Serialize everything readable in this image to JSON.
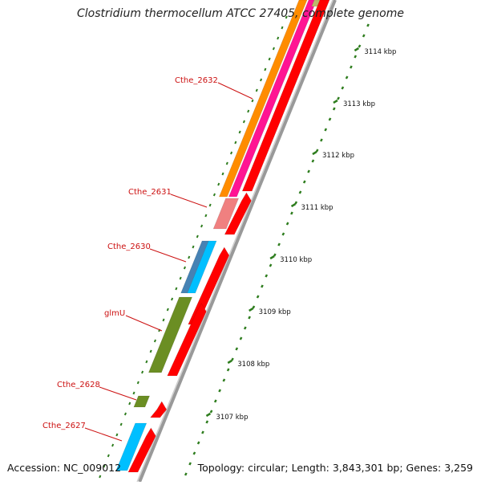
{
  "title": "Clostridium thermocellum ATCC 27405, complete genome",
  "accession": "Accession: NC_009012",
  "topology": "Topology: circular; Length: 3,843,301 bp; Genes: 3,259",
  "scale_labels": [
    "3114 kbp",
    "3113 kbp",
    "3112 kbp",
    "3111 kbp",
    "3110 kbp",
    "3109 kbp",
    "3108 kbp",
    "3107 kbp"
  ],
  "gene_labels": [
    "Cthe_2632",
    "Cthe_2631",
    "Cthe_2630",
    "glmU",
    "Cthe_2628",
    "Cthe_2627"
  ],
  "colors": {
    "label_red": "#cc1111",
    "scale_green": "#2e7d1e",
    "strand_red": "#ff0000",
    "orange": "#ff8c00",
    "pink": "#ff1493",
    "light_red": "#f08080",
    "light_blue": "#00bfff",
    "steel_blue": "#4682b4",
    "olive": "#6b8e23",
    "khaki": "#bdb76b",
    "backbone_gray": "#999999"
  }
}
